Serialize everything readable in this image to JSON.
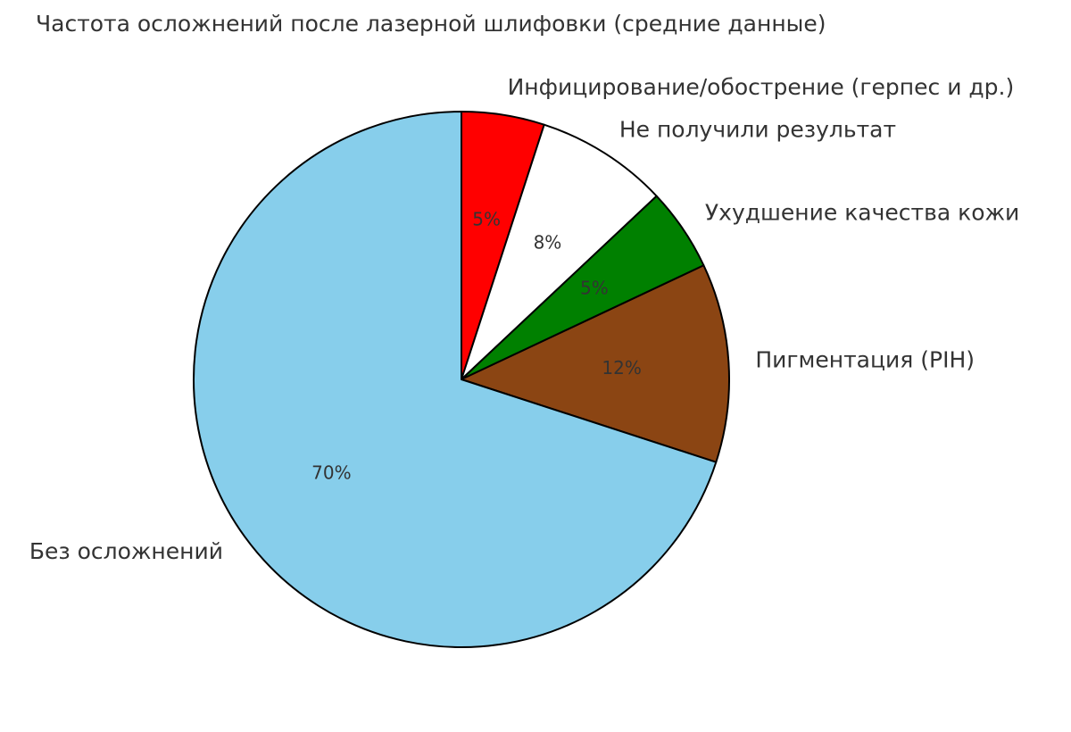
{
  "chart_data": {
    "type": "pie",
    "title": "Частота осложнений после лазерной шлифовки (средние данные)",
    "categories": [
      "Инфицирование/обострение (герпес и др.)",
      "Не получили результат",
      "Ухудшение качества кожи",
      "Пигментация (PIH)",
      "Без осложнений"
    ],
    "values": [
      5,
      8,
      5,
      12,
      70
    ],
    "value_labels": [
      "5%",
      "8%",
      "5%",
      "12%",
      "70%"
    ],
    "colors": [
      "#ff0000",
      "#ffffff",
      "#008000",
      "#8b4513",
      "#87ceeb"
    ]
  }
}
